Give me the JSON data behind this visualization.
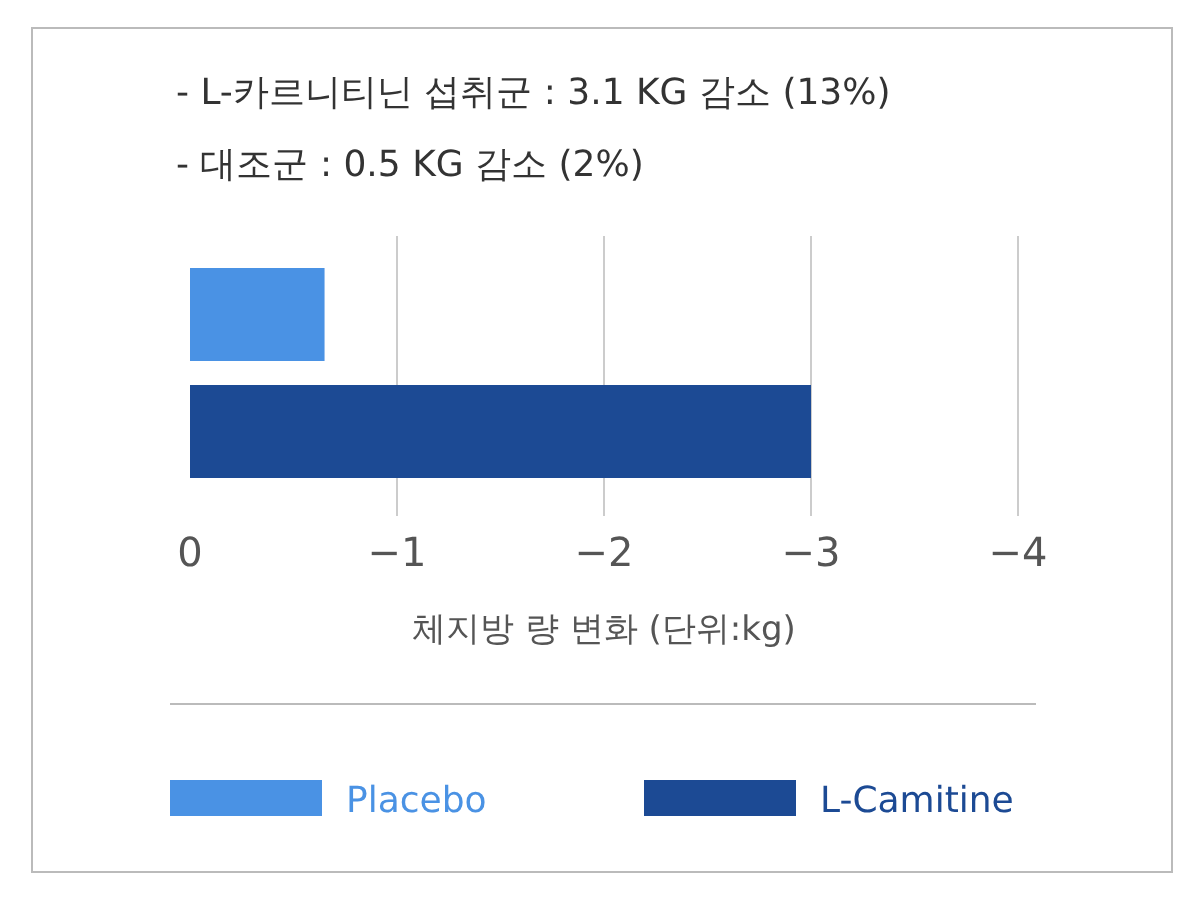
{
  "chart_data": {
    "type": "bar",
    "orientation": "horizontal",
    "categories": [
      null
    ],
    "series": [
      {
        "name": "Placebo",
        "color": "#4a92e4",
        "values": [
          -0.65
        ]
      },
      {
        "name": "L-Camitine",
        "color": "#1c4a94",
        "values": [
          -3.0
        ]
      }
    ],
    "xlim": [
      0,
      -4
    ],
    "xticks": [
      0,
      -1,
      -2,
      -3,
      -4
    ],
    "grid": "x",
    "legend": "bottom",
    "xlabel": "체지방 량 변화 (단위:kg)",
    "annotations": [
      "- L-카르니티닌 섭취군 : 3.1 KG 감소 (13%)",
      "- 대조군 : 0.5  KG 감소 (2%)"
    ]
  }
}
